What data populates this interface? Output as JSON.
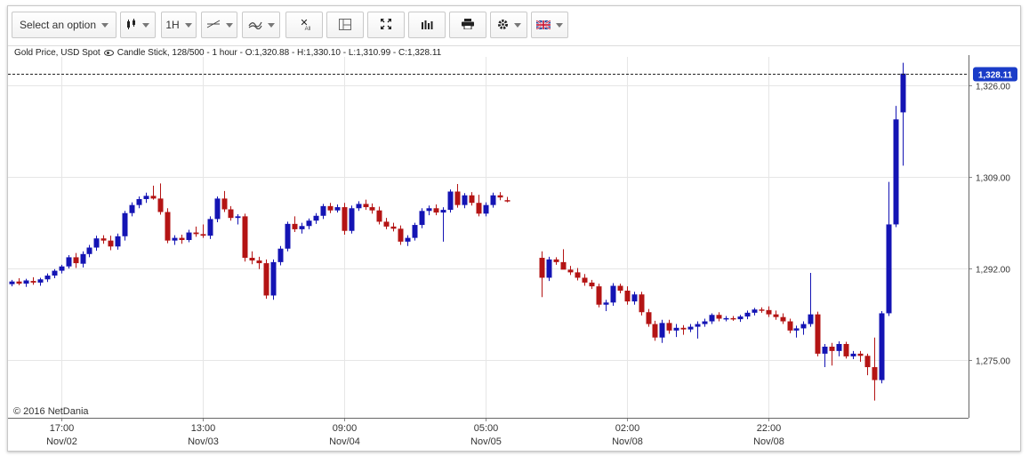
{
  "toolbar": {
    "select_label": "Select an option",
    "interval_label": "1H",
    "icons": [
      "candlestick-type-icon",
      "interval-selector",
      "drawing-tools-icon",
      "indicators-icon",
      "clear-all-icon",
      "layout-icon",
      "fullscreen-icon",
      "volume-bars-icon",
      "print-icon",
      "settings-icon",
      "uk-flag-icon"
    ],
    "clear_all_sub": "All"
  },
  "info": {
    "instrument": "Gold Price, USD Spot",
    "details": "Candle Stick, 128/500 - 1 hour - O:1,320.88 - H:1,330.10 - L:1,310.99 - C:1,328.11"
  },
  "copyright": "© 2016 NetDania",
  "colors": {
    "up": "#1414b4",
    "down": "#b41414",
    "grid": "#e6e6e6",
    "price_tag": "#1a3cc8"
  },
  "chart_data": {
    "type": "candlestick",
    "grid": true,
    "price_axis_position": "right",
    "ylim": [
      1264.2,
      1331.2
    ],
    "y_ticks": [
      1275.0,
      1292.0,
      1309.0,
      1326.0
    ],
    "y_tick_labels": [
      "1,275.00",
      "1,292.00",
      "1,309.00",
      "1,326.00"
    ],
    "x_ticks": [
      {
        "index": 7,
        "time": "17:00",
        "date": "Nov/02"
      },
      {
        "index": 27,
        "time": "13:00",
        "date": "Nov/03"
      },
      {
        "index": 47,
        "time": "09:00",
        "date": "Nov/04"
      },
      {
        "index": 67,
        "time": "05:00",
        "date": "Nov/05"
      },
      {
        "index": 87,
        "time": "02:00",
        "date": "Nov/08"
      },
      {
        "index": 107,
        "time": "22:00",
        "date": "Nov/08"
      }
    ],
    "last_price": 1328.11,
    "last_price_label": "1,328.11",
    "candles": [
      [
        1289.0,
        1289.8,
        1288.6,
        1289.5
      ],
      [
        1289.5,
        1290.1,
        1288.8,
        1289.1
      ],
      [
        1289.1,
        1290.0,
        1288.5,
        1289.7
      ],
      [
        1289.6,
        1290.3,
        1288.9,
        1289.3
      ],
      [
        1289.3,
        1290.2,
        1288.7,
        1289.9
      ],
      [
        1289.9,
        1291.0,
        1289.4,
        1290.6
      ],
      [
        1290.6,
        1291.8,
        1290.1,
        1291.5
      ],
      [
        1291.5,
        1292.6,
        1291.0,
        1292.3
      ],
      [
        1292.3,
        1294.4,
        1291.9,
        1294.0
      ],
      [
        1294.0,
        1294.8,
        1292.0,
        1292.9
      ],
      [
        1292.8,
        1295.1,
        1292.1,
        1294.6
      ],
      [
        1294.6,
        1296.3,
        1294.0,
        1295.8
      ],
      [
        1295.8,
        1298.0,
        1295.2,
        1297.5
      ],
      [
        1297.5,
        1298.1,
        1296.5,
        1297.1
      ],
      [
        1297.1,
        1298.0,
        1295.3,
        1296.0
      ],
      [
        1296.0,
        1298.4,
        1295.4,
        1297.9
      ],
      [
        1297.9,
        1302.6,
        1297.1,
        1302.2
      ],
      [
        1302.2,
        1304.2,
        1301.6,
        1303.7
      ],
      [
        1303.7,
        1305.3,
        1303.1,
        1304.8
      ],
      [
        1304.8,
        1306.0,
        1304.1,
        1305.4
      ],
      [
        1305.4,
        1307.3,
        1304.7,
        1304.9
      ],
      [
        1304.9,
        1307.7,
        1301.9,
        1302.4
      ],
      [
        1302.4,
        1303.1,
        1296.6,
        1297.1
      ],
      [
        1297.1,
        1298.1,
        1296.3,
        1297.6
      ],
      [
        1297.6,
        1298.2,
        1296.5,
        1297.2
      ],
      [
        1297.2,
        1299.1,
        1296.8,
        1298.6
      ],
      [
        1298.6,
        1299.7,
        1297.8,
        1298.3
      ],
      [
        1298.3,
        1300.1,
        1297.6,
        1298.0
      ],
      [
        1298.0,
        1301.6,
        1297.4,
        1301.1
      ],
      [
        1301.1,
        1305.3,
        1300.5,
        1304.9
      ],
      [
        1304.9,
        1306.3,
        1302.4,
        1302.9
      ],
      [
        1302.9,
        1303.5,
        1300.8,
        1301.3
      ],
      [
        1301.3,
        1302.0,
        1300.1,
        1301.6
      ],
      [
        1301.6,
        1302.1,
        1293.2,
        1293.9
      ],
      [
        1293.9,
        1295.1,
        1292.7,
        1293.4
      ],
      [
        1293.4,
        1294.1,
        1291.8,
        1292.9
      ],
      [
        1292.9,
        1293.6,
        1286.3,
        1286.9
      ],
      [
        1286.9,
        1293.6,
        1286.1,
        1293.1
      ],
      [
        1293.1,
        1296.1,
        1292.5,
        1295.6
      ],
      [
        1295.6,
        1300.6,
        1295.1,
        1300.2
      ],
      [
        1300.2,
        1301.6,
        1298.7,
        1299.2
      ],
      [
        1299.2,
        1300.4,
        1298.4,
        1299.8
      ],
      [
        1299.8,
        1301.2,
        1299.2,
        1300.8
      ],
      [
        1300.8,
        1302.2,
        1300.2,
        1301.7
      ],
      [
        1301.7,
        1303.9,
        1301.1,
        1303.5
      ],
      [
        1303.5,
        1304.1,
        1302.2,
        1302.7
      ],
      [
        1302.7,
        1303.8,
        1302.3,
        1303.3
      ],
      [
        1303.3,
        1304.1,
        1298.2,
        1298.9
      ],
      [
        1298.9,
        1303.6,
        1298.4,
        1303.1
      ],
      [
        1303.1,
        1304.4,
        1302.6,
        1303.9
      ],
      [
        1303.9,
        1304.7,
        1302.8,
        1303.3
      ],
      [
        1303.3,
        1304.0,
        1302.1,
        1302.7
      ],
      [
        1302.7,
        1303.4,
        1300.1,
        1300.6
      ],
      [
        1300.6,
        1301.3,
        1299.2,
        1299.7
      ],
      [
        1299.7,
        1300.4,
        1298.8,
        1299.3
      ],
      [
        1299.3,
        1299.9,
        1296.3,
        1296.9
      ],
      [
        1296.9,
        1298.1,
        1296.1,
        1297.6
      ],
      [
        1297.6,
        1300.4,
        1297.1,
        1300.0
      ],
      [
        1300.0,
        1303.1,
        1299.4,
        1302.6
      ],
      [
        1302.6,
        1303.6,
        1301.8,
        1303.1
      ],
      [
        1303.1,
        1303.8,
        1301.8,
        1302.3
      ],
      [
        1302.3,
        1303.3,
        1296.9,
        1302.8
      ],
      [
        1302.8,
        1306.6,
        1302.3,
        1306.2
      ],
      [
        1306.2,
        1307.6,
        1303.2,
        1303.7
      ],
      [
        1303.7,
        1305.9,
        1303.1,
        1305.5
      ],
      [
        1305.5,
        1306.1,
        1303.6,
        1304.1
      ],
      [
        1304.1,
        1305.6,
        1301.6,
        1302.1
      ],
      [
        1302.1,
        1304.2,
        1301.6,
        1303.7
      ],
      [
        1303.7,
        1306.0,
        1303.2,
        1305.5
      ],
      [
        1305.5,
        1306.1,
        1304.6,
        1305.1
      ],
      [
        1304.6,
        1305.2,
        1304.2,
        1304.4
      ],
      null,
      null,
      null,
      null,
      [
        1293.9,
        1295.1,
        1286.6,
        1290.2
      ],
      [
        1290.2,
        1294.1,
        1289.6,
        1293.6
      ],
      [
        1293.6,
        1294.0,
        1292.6,
        1293.1
      ],
      [
        1293.1,
        1295.5,
        1292.4,
        1291.7
      ],
      [
        1291.7,
        1292.4,
        1290.7,
        1291.2
      ],
      [
        1291.2,
        1292.0,
        1289.7,
        1290.2
      ],
      [
        1290.2,
        1290.9,
        1288.7,
        1289.3
      ],
      [
        1289.3,
        1289.8,
        1288.1,
        1288.6
      ],
      [
        1288.6,
        1289.1,
        1284.7,
        1285.2
      ],
      [
        1285.2,
        1286.1,
        1284.0,
        1285.6
      ],
      [
        1285.6,
        1289.2,
        1285.0,
        1288.7
      ],
      [
        1288.7,
        1289.1,
        1287.3,
        1287.8
      ],
      [
        1287.8,
        1288.6,
        1285.2,
        1285.8
      ],
      [
        1285.8,
        1287.6,
        1285.2,
        1287.1
      ],
      [
        1287.1,
        1287.6,
        1283.2,
        1283.8
      ],
      [
        1283.8,
        1284.4,
        1281.1,
        1281.6
      ],
      [
        1281.6,
        1282.2,
        1278.5,
        1279.1
      ],
      [
        1279.1,
        1282.4,
        1278.1,
        1281.8
      ],
      [
        1281.8,
        1282.4,
        1279.8,
        1280.4
      ],
      [
        1280.4,
        1281.6,
        1279.2,
        1280.9
      ],
      [
        1280.9,
        1281.4,
        1279.6,
        1280.6
      ],
      [
        1280.6,
        1281.6,
        1280.1,
        1281.1
      ],
      [
        1281.1,
        1282.1,
        1278.9,
        1281.6
      ],
      [
        1281.6,
        1282.6,
        1281.1,
        1282.1
      ],
      [
        1282.1,
        1283.6,
        1281.6,
        1283.3
      ],
      [
        1283.3,
        1283.8,
        1282.1,
        1282.6
      ],
      [
        1282.6,
        1283.1,
        1282.1,
        1282.7
      ],
      [
        1282.7,
        1283.1,
        1282.2,
        1282.5
      ],
      [
        1282.5,
        1283.3,
        1282.0,
        1283.0
      ],
      [
        1283.0,
        1284.1,
        1282.5,
        1283.7
      ],
      [
        1283.7,
        1284.6,
        1283.2,
        1284.3
      ],
      [
        1284.3,
        1284.7,
        1283.7,
        1284.2
      ],
      [
        1284.2,
        1284.9,
        1282.9,
        1283.4
      ],
      [
        1283.4,
        1284.1,
        1282.4,
        1282.9
      ],
      [
        1282.9,
        1283.6,
        1281.6,
        1282.1
      ],
      [
        1282.1,
        1282.6,
        1279.9,
        1280.4
      ],
      [
        1280.4,
        1281.3,
        1279.1,
        1280.8
      ],
      [
        1280.8,
        1282.1,
        1279.6,
        1281.6
      ],
      [
        1281.6,
        1291.1,
        1281.1,
        1283.4
      ],
      [
        1283.4,
        1283.9,
        1275.6,
        1276.1
      ],
      [
        1276.1,
        1277.9,
        1273.6,
        1277.4
      ],
      [
        1277.4,
        1278.1,
        1273.9,
        1276.6
      ],
      [
        1276.6,
        1278.4,
        1275.6,
        1277.9
      ],
      [
        1277.9,
        1278.3,
        1275.2,
        1275.6
      ],
      [
        1275.6,
        1276.6,
        1275.1,
        1276.1
      ],
      [
        1276.1,
        1276.6,
        1274.6,
        1275.7
      ],
      [
        1275.7,
        1276.1,
        1272.1,
        1273.6
      ],
      [
        1273.6,
        1279.1,
        1267.4,
        1271.2
      ],
      [
        1271.2,
        1284.0,
        1270.6,
        1283.6
      ],
      [
        1283.6,
        1308.0,
        1283.1,
        1300.1
      ],
      [
        1300.1,
        1322.1,
        1299.6,
        1319.6
      ],
      [
        1320.9,
        1330.1,
        1311.0,
        1328.1
      ]
    ]
  }
}
